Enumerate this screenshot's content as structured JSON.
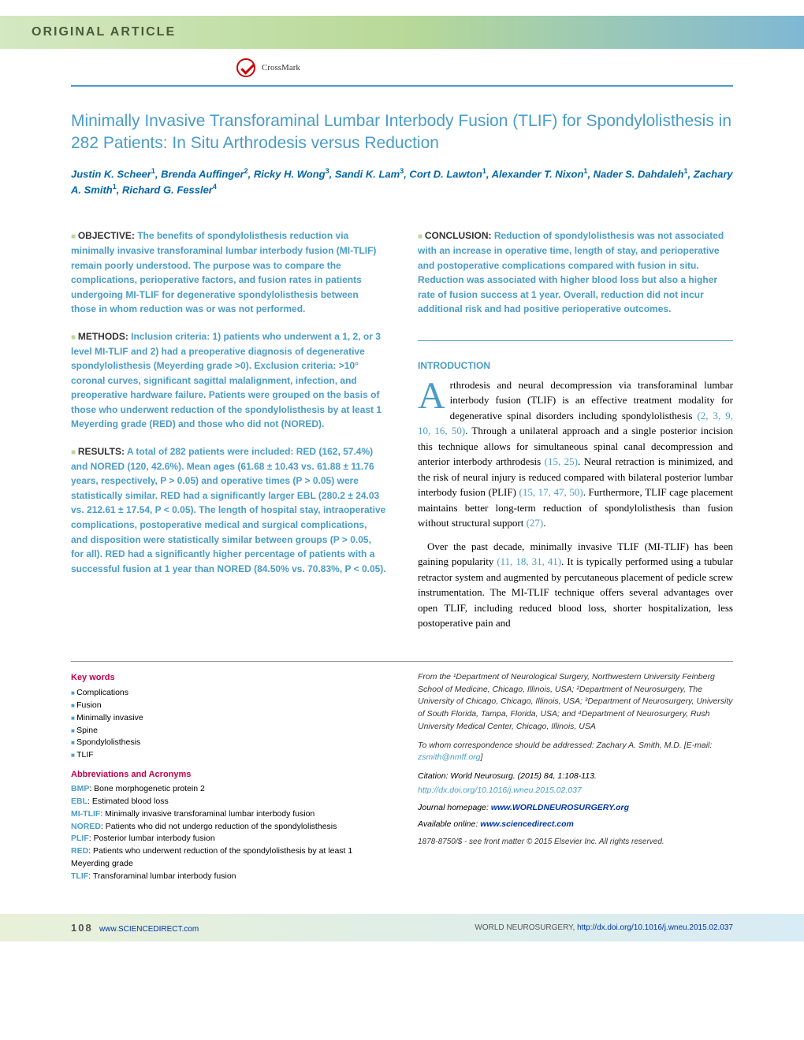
{
  "header": {
    "label": "Original Article",
    "crossmark": "CrossMark"
  },
  "title": "Minimally Invasive Transforaminal Lumbar Interbody Fusion (TLIF) for Spondylolisthesis in 282 Patients: In Situ Arthrodesis versus Reduction",
  "authors_html": "Justin K. Scheer<sup>1</sup>, Brenda Auffinger<sup>2</sup>, Ricky H. Wong<sup>3</sup>, Sandi K. Lam<sup>3</sup>, Cort D. Lawton<sup>1</sup>, Alexander T. Nixon<sup>1</sup>, Nader S. Dahdaleh<sup>1</sup>, Zachary A. Smith<sup>1</sup>, Richard G. Fessler<sup>4</sup>",
  "abstract": {
    "objective": {
      "label": "OBJECTIVE:",
      "text": "The benefits of spondylolisthesis reduction via minimally invasive transforaminal lumbar interbody fusion (MI-TLIF) remain poorly understood. The purpose was to compare the complications, perioperative factors, and fusion rates in patients undergoing MI-TLIF for degenerative spondylolisthesis between those in whom reduction was or was not performed."
    },
    "methods": {
      "label": "METHODS:",
      "text": "Inclusion criteria: 1) patients who underwent a 1, 2, or 3 level MI-TLIF and 2) had a preoperative diagnosis of degenerative spondylolisthesis (Meyerding grade >0). Exclusion criteria: >10° coronal curves, significant sagittal malalignment, infection, and preoperative hardware failure. Patients were grouped on the basis of those who underwent reduction of the spondylolisthesis by at least 1 Meyerding grade (RED) and those who did not (NORED)."
    },
    "results": {
      "label": "RESULTS:",
      "text": "A total of 282 patients were included: RED (162, 57.4%) and NORED (120, 42.6%). Mean ages (61.68 ± 10.43 vs. 61.88 ± 11.76 years, respectively, P > 0.05) and operative times (P > 0.05) were statistically similar. RED had a significantly larger EBL (280.2 ± 24.03 vs. 212.61 ± 17.54, P < 0.05). The length of hospital stay, intraoperative complications, postoperative medical and surgical complications, and disposition were statistically similar between groups (P > 0.05, for all). RED had a significantly higher percentage of patients with a successful fusion at 1 year than NORED (84.50% vs. 70.83%, P < 0.05)."
    },
    "conclusion": {
      "label": "CONCLUSION:",
      "text": "Reduction of spondylolisthesis was not associated with an increase in operative time, length of stay, and perioperative and postoperative complications compared with fusion in situ. Reduction was associated with higher blood loss but also a higher rate of fusion success at 1 year. Overall, reduction did not incur additional risk and had positive perioperative outcomes."
    }
  },
  "intro": {
    "heading": "INTRODUCTION",
    "p1_html": "rthrodesis and neural decompression via transforaminal lumbar interbody fusion (TLIF) is an effective treatment modality for degenerative spinal disorders including spondylolisthesis <span class='ref-link'>(2, 3, 9, 10, 16, 50)</span>. Through a unilateral approach and a single posterior incision this technique allows for simultaneous spinal canal decompression and anterior interbody arthrodesis <span class='ref-link'>(15, 25)</span>. Neural retraction is minimized, and the risk of neural injury is reduced compared with bilateral posterior lumbar interbody fusion (PLIF) <span class='ref-link'>(15, 17, 47, 50)</span>. Furthermore, TLIF cage placement maintains better long-term reduction of spondylolisthesis than fusion without structural support <span class='ref-link'>(27)</span>.",
    "p2_html": "Over the past decade, minimally invasive TLIF (MI-TLIF) has been gaining popularity <span class='ref-link'>(11, 18, 31, 41)</span>. It is typically performed using a tubular retractor system and augmented by percutaneous placement of pedicle screw instrumentation. The MI-TLIF technique offers several advantages over open TLIF, including reduced blood loss, shorter hospitalization, less postoperative pain and"
  },
  "keywords": {
    "heading": "Key words",
    "items": [
      "Complications",
      "Fusion",
      "Minimally invasive",
      "Spine",
      "Spondylolisthesis",
      "TLIF"
    ]
  },
  "abbreviations": {
    "heading": "Abbreviations and Acronyms",
    "items": [
      {
        "term": "BMP",
        "def": ": Bone morphogenetic protein 2"
      },
      {
        "term": "EBL",
        "def": ": Estimated blood loss"
      },
      {
        "term": "MI-TLIF",
        "def": ": Minimally invasive transforaminal lumbar interbody fusion"
      },
      {
        "term": "NORED",
        "def": ": Patients who did not undergo reduction of the spondylolisthesis"
      },
      {
        "term": "PLIF",
        "def": ": Posterior lumbar interbody fusion"
      },
      {
        "term": "RED",
        "def": ": Patients who underwent reduction of the spondylolisthesis by at least 1 Meyerding grade"
      },
      {
        "term": "TLIF",
        "def": ": Transforaminal lumbar interbody fusion"
      }
    ]
  },
  "affiliations": "From the ¹Department of Neurological Surgery, Northwestern University Feinberg School of Medicine, Chicago, Illinois, USA; ²Department of Neurosurgery, The University of Chicago, Chicago, Illinois, USA; ³Department of Neurosurgery, University of South Florida, Tampa, Florida, USA; and ⁴Department of Neurosurgery, Rush University Medical Center, Chicago, Illinois, USA",
  "correspondence": {
    "text": "To whom correspondence should be addressed: Zachary A. Smith, M.D. [E-mail: ",
    "email": "zsmith@nmff.org",
    "close": "]"
  },
  "citation": "Citation: World Neurosurg. (2015) 84, 1:108-113.",
  "doi": "http://dx.doi.org/10.1016/j.wneu.2015.02.037",
  "journal_homepage": {
    "label": "Journal homepage: ",
    "url": "www.WORLDNEUROSURGERY.org"
  },
  "available_online": {
    "label": "Available online: ",
    "url": "www.sciencedirect.com"
  },
  "copyright": "1878-8750/$ - see front matter © 2015 Elsevier Inc. All rights reserved.",
  "footer": {
    "page": "108",
    "left": "www.SCIENCEDIRECT.com",
    "right_label": "WORLD NEUROSURGERY, ",
    "right_url": "http://dx.doi.org/10.1016/j.wneu.2015.02.037"
  }
}
